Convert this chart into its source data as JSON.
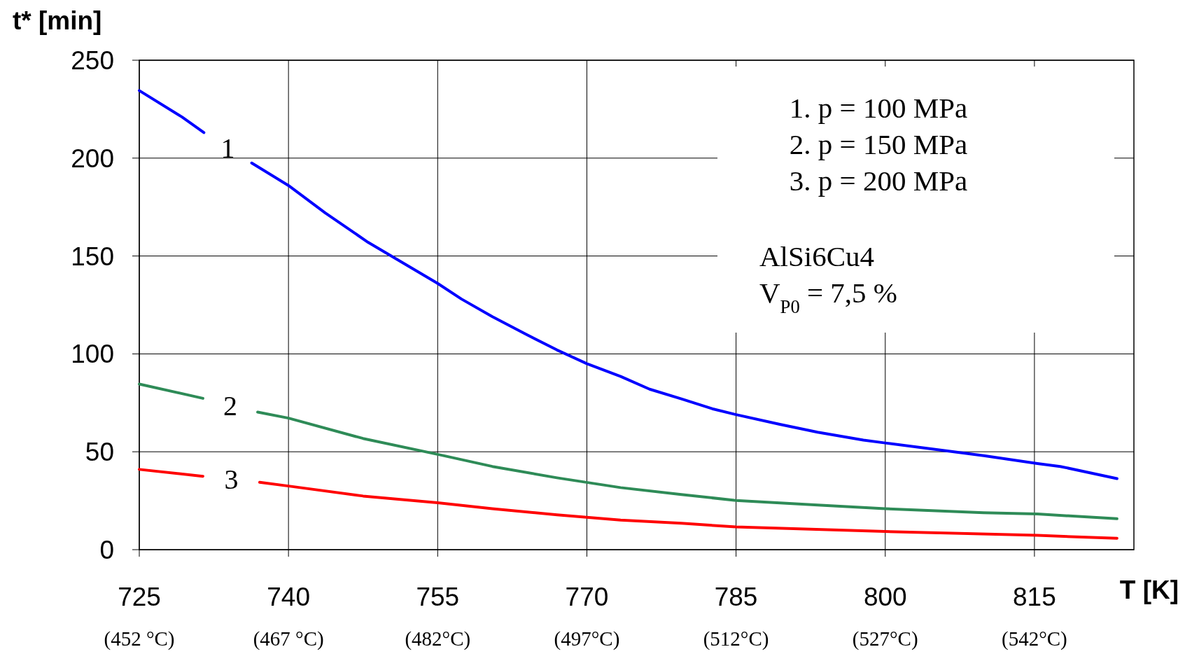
{
  "chart_data": {
    "type": "line",
    "xlabel": "T [K]",
    "ylabel": "t* [min]",
    "xlim": [
      725,
      825
    ],
    "ylim": [
      0,
      250
    ],
    "xticks": [
      725,
      740,
      755,
      770,
      785,
      800,
      815
    ],
    "yticks": [
      0,
      50,
      100,
      150,
      200,
      250
    ],
    "grid": true,
    "line_style": "solid",
    "annotations": [
      "1.  p = 100 MPa",
      "2.  p = 150 MPa",
      "3.  p = 200 MPa",
      "AlSi6Cu4",
      "V$_{P0}$ = 7,5 %",
      "(452 °C)",
      "(467 °C)",
      "(482°C)",
      "(497°C)",
      "(512°C)",
      "(527°C)",
      "(542°C)"
    ],
    "series": [
      {
        "name": "1",
        "color": "#0000ff",
        "x": [
          725,
          729.3,
          731.5,
          735,
          736.3,
          740,
          743.7,
          748,
          755,
          757.4,
          760.5,
          763.9,
          767,
          770,
          773.4,
          776.3,
          779.5,
          782.6,
          785,
          789.4,
          793.2,
          797.8,
          800,
          804.6,
          809.9,
          815.3,
          817.6,
          823.3
        ],
        "values": [
          234.5,
          221,
          213,
          null,
          197.5,
          186,
          172,
          157,
          136,
          128,
          119,
          110,
          102,
          95,
          88.5,
          82,
          77,
          72,
          69,
          64,
          60,
          56,
          54.5,
          51.5,
          48,
          44,
          42.5,
          36.3
        ]
      },
      {
        "name": "2",
        "color": "#2e8b57",
        "x": [
          725,
          731.4,
          734,
          736.9,
          740,
          747.5,
          755,
          760.5,
          767,
          773.4,
          779.5,
          785,
          793.2,
          800,
          809.9,
          815.3,
          823.3
        ],
        "values": [
          84.6,
          77.3,
          null,
          70.3,
          67.2,
          56.8,
          48.7,
          42.5,
          36.7,
          31.7,
          28.2,
          25.1,
          22.8,
          20.9,
          18.9,
          18.2,
          15.8
        ]
      },
      {
        "name": "3",
        "color": "#ff0000",
        "x": [
          725,
          731.4,
          734,
          737.1,
          740,
          747.5,
          755,
          760.5,
          767,
          773.4,
          779.5,
          785,
          800,
          815.3,
          823.3
        ],
        "values": [
          41,
          37.5,
          null,
          34.4,
          32.5,
          27.4,
          24,
          20.9,
          17.8,
          15.1,
          13.5,
          11.6,
          9.3,
          7.3,
          5.8
        ]
      }
    ]
  }
}
